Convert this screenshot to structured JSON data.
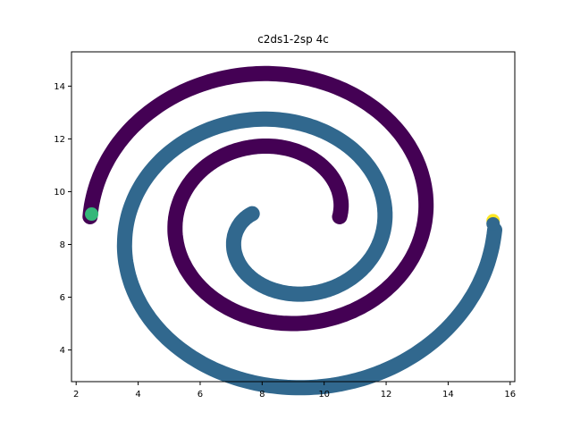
{
  "chart_data": {
    "type": "scatter",
    "title": "c2ds1-2sp 4c",
    "xlabel": "",
    "ylabel": "",
    "xlim": [
      1.85,
      16.15
    ],
    "ylim": [
      2.8,
      15.3
    ],
    "xticks": [
      2,
      4,
      6,
      8,
      10,
      12,
      14,
      16
    ],
    "yticks": [
      4,
      6,
      8,
      10,
      12,
      14
    ],
    "grid": false,
    "legend": "none",
    "series": [
      {
        "color": "#440154",
        "points_description": "outer spiral from (2.5, 9.2) counter-clockwise around center (~8.6, 8.9) ending near (10.5, 9.0)",
        "center": [
          8.6,
          9.0
        ],
        "start": [
          2.5,
          9.2
        ],
        "end": [
          10.5,
          9.0
        ]
      },
      {
        "color": "#31688e",
        "points_description": "interlaced spiral from (15.5, 8.8) around center ending near (7.5, 9.0)",
        "center": [
          8.6,
          8.6
        ],
        "start": [
          15.5,
          8.8
        ],
        "end": [
          7.5,
          9.0
        ]
      }
    ],
    "markers": [
      {
        "x": 2.5,
        "y": 9.15,
        "color": "#35b779"
      },
      {
        "x": 15.45,
        "y": 8.9,
        "color": "#fde725"
      }
    ]
  }
}
